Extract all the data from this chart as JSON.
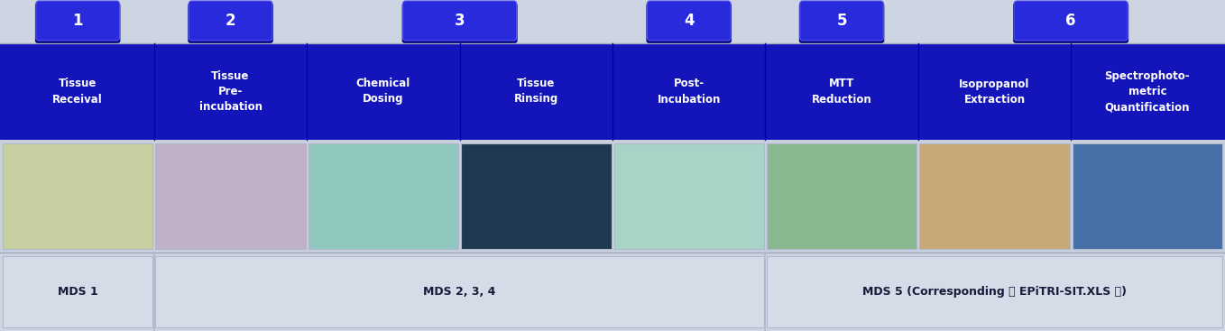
{
  "fig_width": 13.58,
  "fig_height": 3.67,
  "dpi": 100,
  "bg_color": "#cdd5e2",
  "col_labels": [
    "Tissue\nReceival",
    "Tissue\nPre-\nincubation",
    "Chemical\nDosing",
    "Tissue\nRinsing",
    "Post-\nIncubation",
    "MTT\nReduction",
    "Isopropanol\nExtraction",
    "Spectrophotо-\nmetric\nQuantification"
  ],
  "step_numbers": [
    "1",
    "2",
    "3",
    "4",
    "5",
    "6"
  ],
  "mds_labels": [
    "MDS 1",
    "MDS 2, 3, 4",
    "MDS 5 (Corresponding 【 EPiTRI-SIT.XLS 】)"
  ],
  "blue_btn": "#2a2add",
  "blue_btn_dark": "#00007a",
  "blue_header": "#1414bb",
  "white": "#ffffff",
  "mds_bg": "#d5dce8",
  "mds_border": "#b0b8cc",
  "img_border": "#b0b8cc"
}
